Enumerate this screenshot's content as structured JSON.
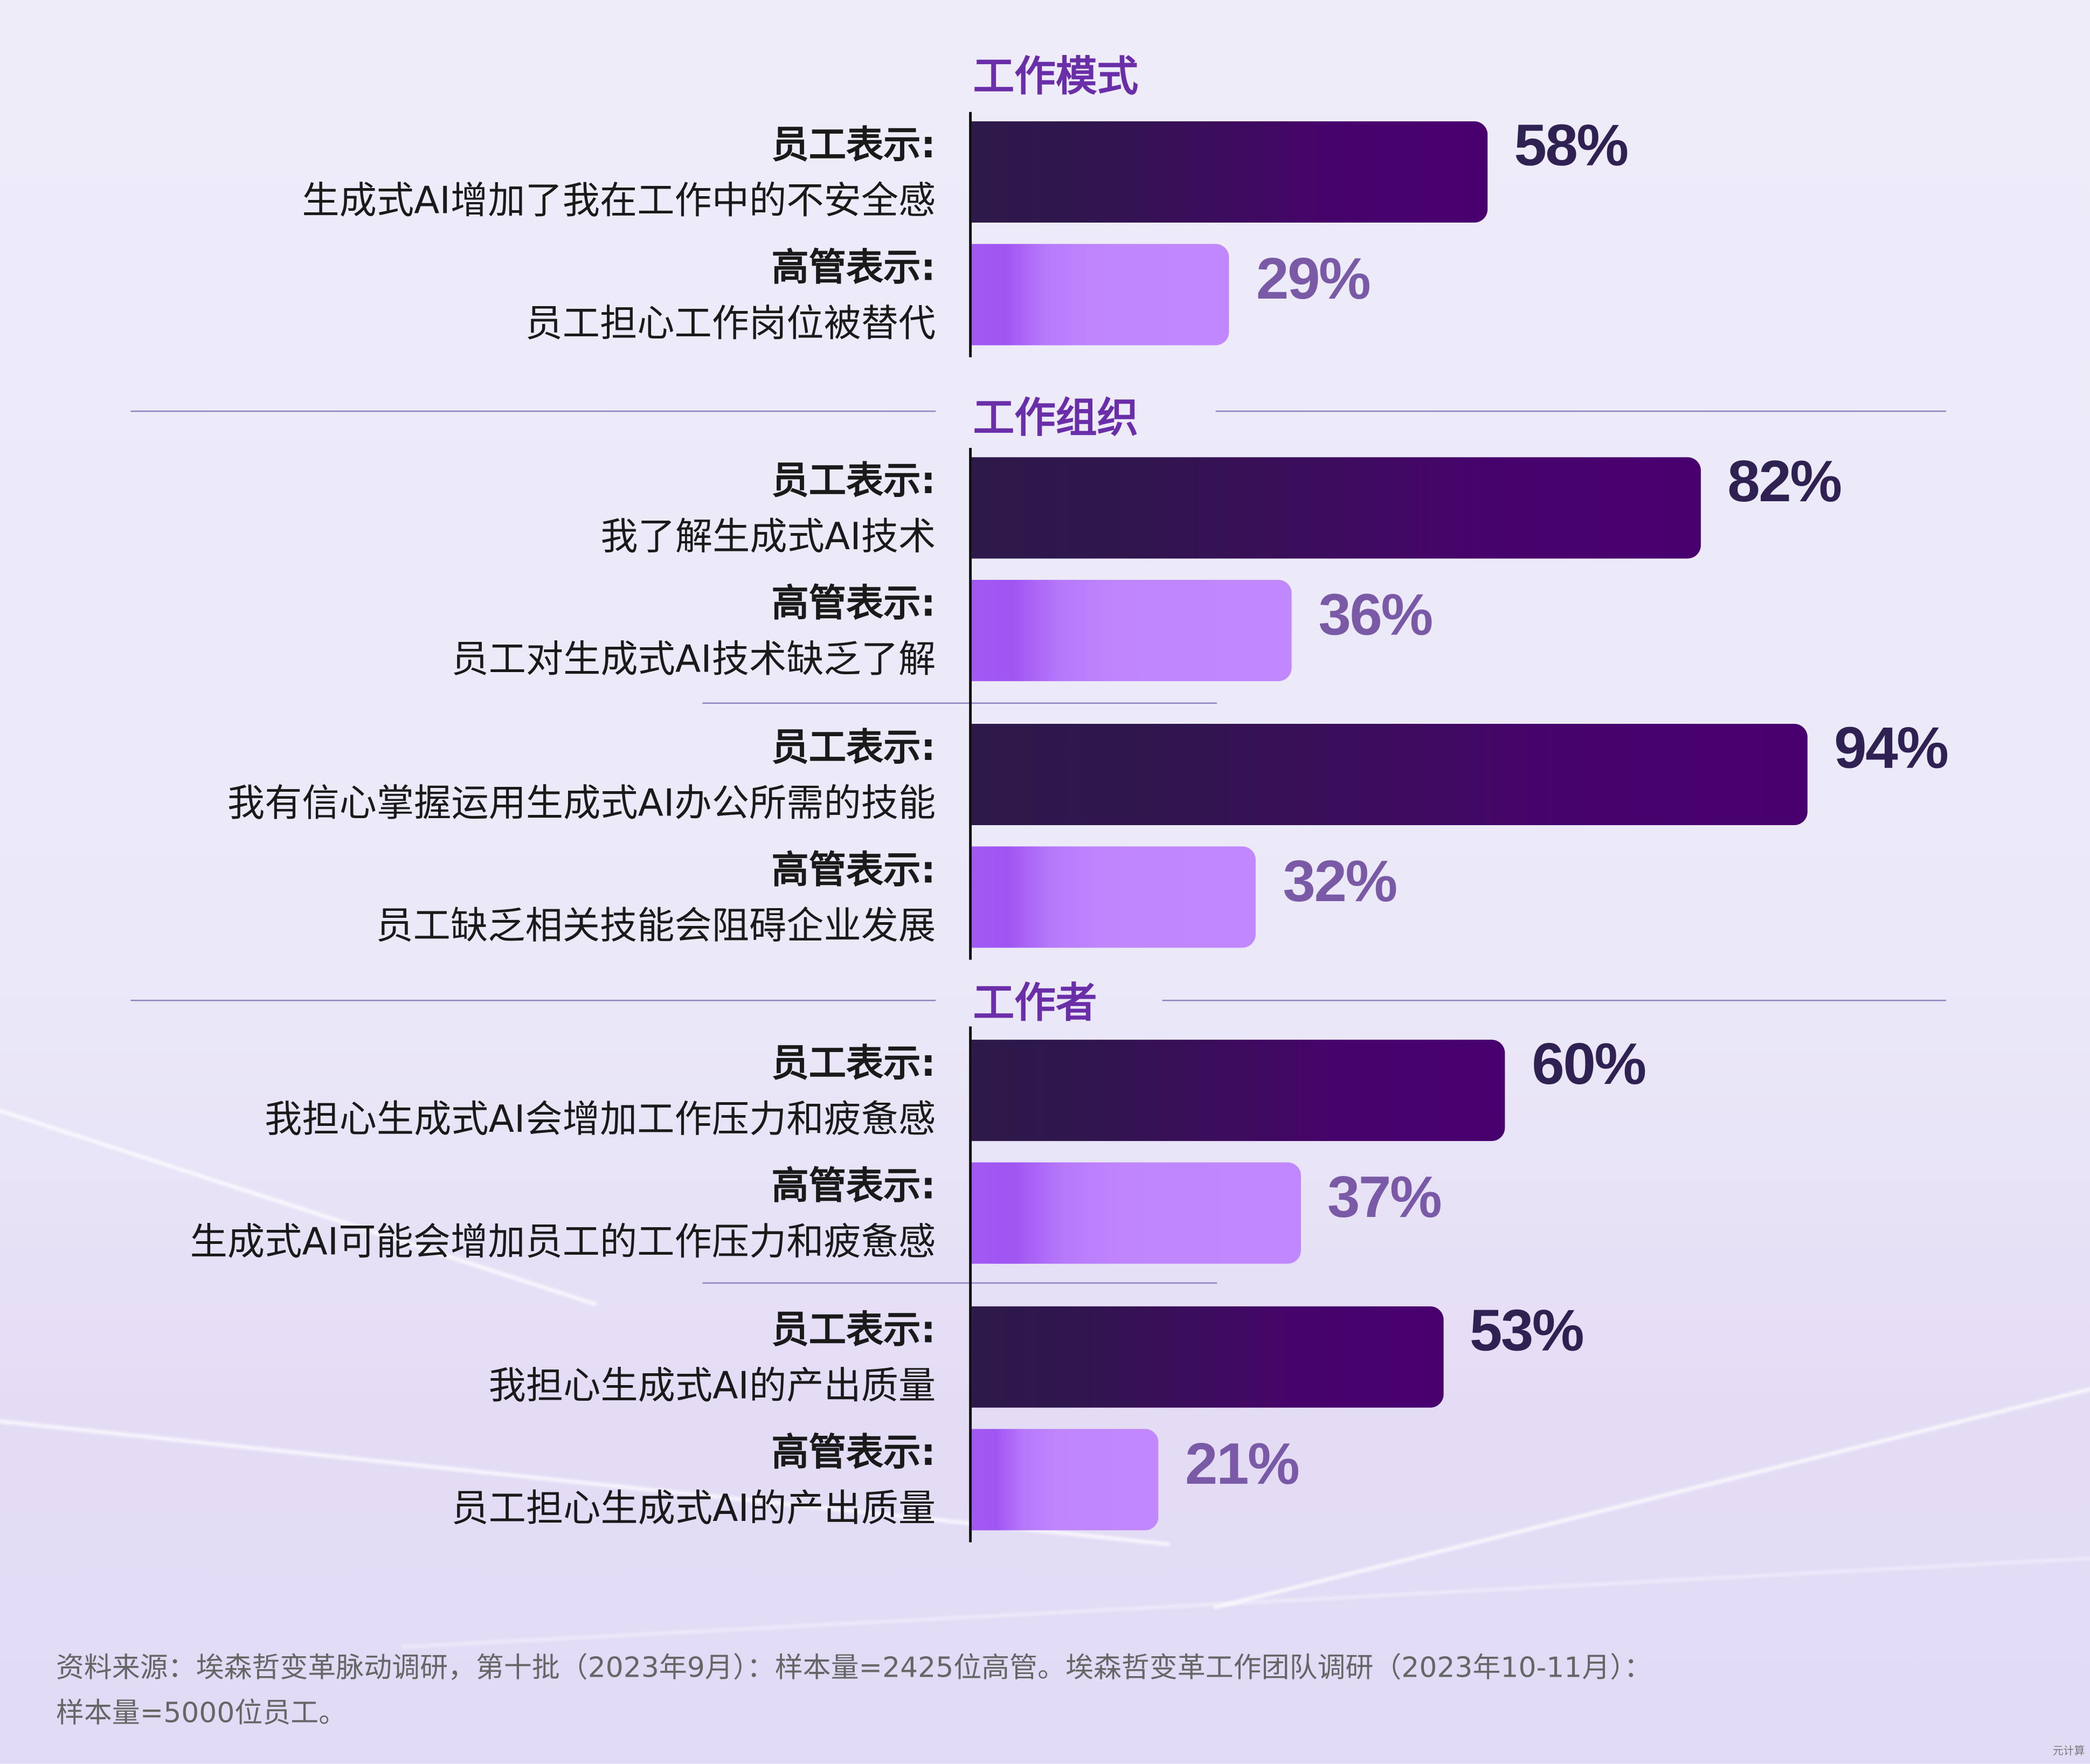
{
  "chart_data": {
    "type": "bar",
    "orientation": "horizontal",
    "xlim": [
      0,
      100
    ],
    "unit": "%",
    "series_colors": {
      "employee": "#48006e",
      "executive": "#c188fe"
    },
    "sections": [
      {
        "title": "工作模式",
        "groups": [
          [
            {
              "who": "员工表示:",
              "text": "生成式AI增加了我在工作中的不安全感",
              "value": 58,
              "label": "58%",
              "series": "employee"
            },
            {
              "who": "高管表示:",
              "text": "员工担心工作岗位被替代",
              "value": 29,
              "label": "29%",
              "series": "executive"
            }
          ]
        ]
      },
      {
        "title": "工作组织",
        "groups": [
          [
            {
              "who": "员工表示:",
              "text": "我了解生成式AI技术",
              "value": 82,
              "label": "82%",
              "series": "employee"
            },
            {
              "who": "高管表示:",
              "text": "员工对生成式AI技术缺乏了解",
              "value": 36,
              "label": "36%",
              "series": "executive"
            }
          ],
          [
            {
              "who": "员工表示:",
              "text": "我有信心掌握运用生成式AI办公所需的技能",
              "value": 94,
              "label": "94%",
              "series": "employee"
            },
            {
              "who": "高管表示:",
              "text": "员工缺乏相关技能会阻碍企业发展",
              "value": 32,
              "label": "32%",
              "series": "executive"
            }
          ]
        ]
      },
      {
        "title": "工作者",
        "groups": [
          [
            {
              "who": "员工表示:",
              "text": "我担心生成式AI会增加工作压力和疲惫感",
              "value": 60,
              "label": "60%",
              "series": "employee"
            },
            {
              "who": "高管表示:",
              "text": "生成式AI可能会增加员工的工作压力和疲惫感",
              "value": 37,
              "label": "37%",
              "series": "executive"
            }
          ],
          [
            {
              "who": "员工表示:",
              "text": "我担心生成式AI的产出质量",
              "value": 53,
              "label": "53%",
              "series": "employee"
            },
            {
              "who": "高管表示:",
              "text": "员工担心生成式AI的产出质量",
              "value": 21,
              "label": "21%",
              "series": "executive"
            }
          ]
        ]
      }
    ]
  },
  "footer": {
    "line1": "资料来源：埃森哲变革脉动调研，第十批（2023年9月）：样本量=2425位高管。埃森哲变革工作团队调研（2023年10-11月）：",
    "line2": "样本量=5000位员工。"
  },
  "watermark": "元计算"
}
